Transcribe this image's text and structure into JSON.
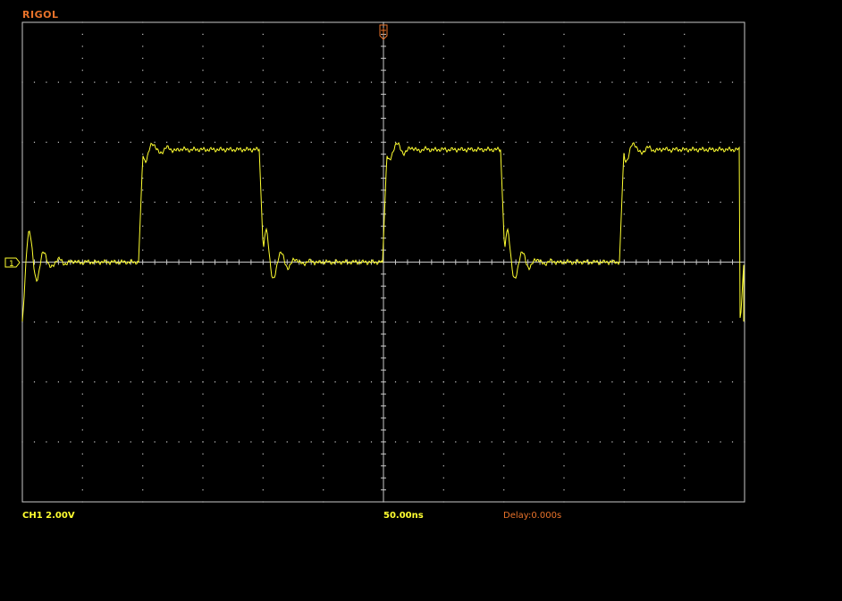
{
  "brand": {
    "name": "RIGOL"
  },
  "colors": {
    "brand": "#e8722a",
    "trace": "#ffff30",
    "grid": "#c8c8c8",
    "status": "#ffff30",
    "delay": "#e8722a"
  },
  "status_bar": {
    "channel": "CH1",
    "volts_per_div": "2.00V",
    "timebase": "50.00ns",
    "delay": "Delay:0.000s"
  },
  "markers": {
    "channel_marker_label": "1",
    "trigger_marker_icon": "trigger-position-icon"
  },
  "chart_data": {
    "type": "line",
    "grid": true,
    "x_divisions": 12,
    "y_divisions": 8,
    "series": [
      {
        "values": []
      }
    ]
  }
}
